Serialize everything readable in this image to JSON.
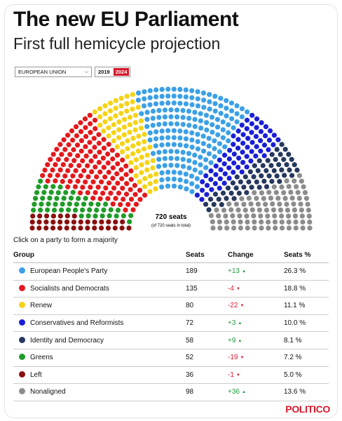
{
  "header": {
    "title": "The new EU Parliament",
    "subtitle": "First full hemicycle projection"
  },
  "controls": {
    "region_select": "EUROPEAN UNION",
    "years": [
      "2019",
      "2024"
    ],
    "active_year": "2024"
  },
  "hemicycle": {
    "total_label": "720 seats",
    "total_sub": "(of 720 seats in total)"
  },
  "prompt": "Click on a party to form a majority",
  "chart_data": {
    "type": "table",
    "columns": [
      "Group",
      "Seats",
      "Change",
      "Seats %"
    ],
    "rows": [
      {
        "group": "European People's Party",
        "seats": 189,
        "change": "+13",
        "pct": "26.3 %",
        "color": "#3ca0e6",
        "dir": "up"
      },
      {
        "group": "Socialists and Democrats",
        "seats": 135,
        "change": "-4",
        "pct": "18.8 %",
        "color": "#e3191c",
        "dir": "down"
      },
      {
        "group": "Renew",
        "seats": 80,
        "change": "-22",
        "pct": "11.1 %",
        "color": "#f5d316",
        "dir": "down"
      },
      {
        "group": "Conservatives and Reformists",
        "seats": 72,
        "change": "+3",
        "pct": "10.0 %",
        "color": "#1a1fd6",
        "dir": "up"
      },
      {
        "group": "Identity and Democracy",
        "seats": 58,
        "change": "+9",
        "pct": "8.1 %",
        "color": "#27385e",
        "dir": "up"
      },
      {
        "group": "Greens",
        "seats": 52,
        "change": "-19",
        "pct": "7.2 %",
        "color": "#1f9c28",
        "dir": "down"
      },
      {
        "group": "Left",
        "seats": 36,
        "change": "-1",
        "pct": "5.0 %",
        "color": "#8a0f0f",
        "dir": "down"
      },
      {
        "group": "Nonaligned",
        "seats": 98,
        "change": "+36",
        "pct": "13.6 %",
        "color": "#8c8c8c",
        "dir": "up"
      }
    ],
    "hemicycle_order": [
      "Left",
      "Greens",
      "Socialists and Democrats",
      "Renew",
      "European People's Party",
      "Conservatives and Reformists",
      "Identity and Democracy",
      "Nonaligned"
    ],
    "total_seats": 720
  },
  "brand": "POLITICO"
}
